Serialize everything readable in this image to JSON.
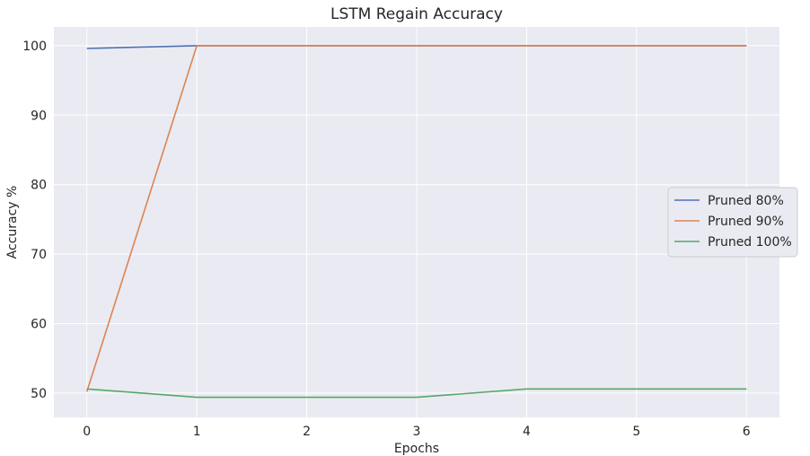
{
  "chart_data": {
    "type": "line",
    "title": "LSTM Regain Accuracy",
    "xlabel": "Epochs",
    "ylabel": "Accuracy %",
    "x": [
      0,
      1,
      2,
      3,
      4,
      5,
      6
    ],
    "xlim": [
      -0.3,
      6.3
    ],
    "ylim": [
      46.5,
      102.7
    ],
    "xticks": [
      0,
      1,
      2,
      3,
      4,
      5,
      6
    ],
    "yticks": [
      50,
      60,
      70,
      80,
      90,
      100
    ],
    "grid": true,
    "legend_position": "center-right",
    "background": "#eaeaf2",
    "series": [
      {
        "name": "Pruned 80%",
        "color": "#4c72b0",
        "values": [
          99.6,
          100,
          100,
          100,
          100,
          100,
          100
        ]
      },
      {
        "name": "Pruned 90%",
        "color": "#dd8452",
        "values": [
          50.2,
          100,
          100,
          100,
          100,
          100,
          100
        ]
      },
      {
        "name": "Pruned 100%",
        "color": "#55a868",
        "values": [
          50.6,
          49.4,
          49.4,
          49.4,
          50.6,
          50.6,
          50.6
        ]
      }
    ]
  }
}
